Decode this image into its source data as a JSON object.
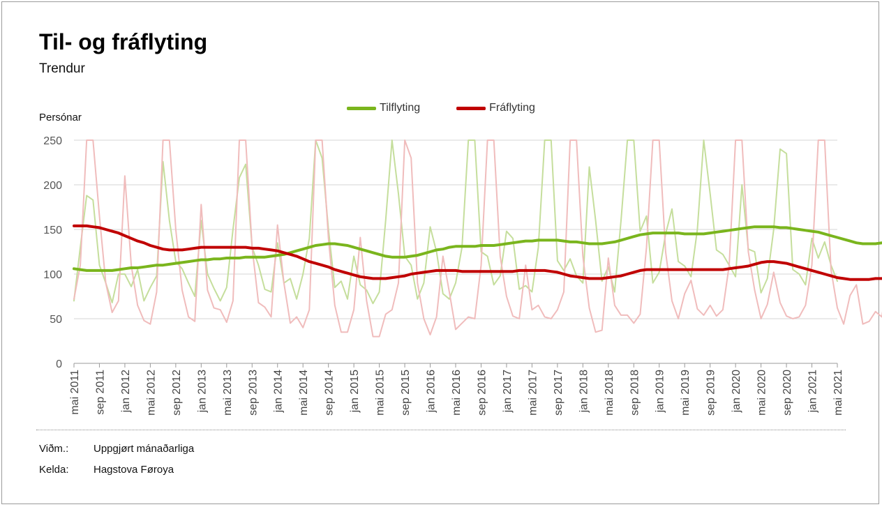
{
  "title": "Til- og fráflyting",
  "subtitle": "Trendur",
  "footer": {
    "unit_key": "Viðm.:",
    "unit_value": "Uppgjørt mánaðarliga",
    "source_key": "Kelda:",
    "source_value": "Hagstova Føroya"
  },
  "chart_data": {
    "type": "line",
    "title": "Til- og fráflyting",
    "subtitle": "Trendur",
    "ylabel": "Persónar",
    "xlabel": "",
    "ylim": [
      0,
      250
    ],
    "yticks": [
      0,
      50,
      100,
      150,
      200,
      250
    ],
    "grid": true,
    "legend_position": "top-center",
    "x_start": "2011-05",
    "x_end": "2021-05",
    "tick_labels": [
      "mai 2011",
      "sep 2011",
      "jan 2012",
      "mai 2012",
      "sep 2012",
      "jan 2013",
      "mai 2013",
      "sep 2013",
      "jan 2014",
      "mai 2014",
      "sep 2014",
      "jan 2015",
      "mai 2015",
      "sep 2015",
      "jan 2016",
      "mai 2016",
      "sep 2016",
      "jan 2017",
      "mai 2017",
      "sep 2017",
      "jan 2018",
      "mai 2018",
      "sep 2018",
      "jan 2019",
      "mai 2019",
      "sep 2019",
      "jan 2020",
      "mai 2020",
      "sep 2020",
      "jan 2021",
      "mai 2021"
    ],
    "series": [
      {
        "name": "Tilflyting",
        "kind": "trend",
        "color": "#7ab51d",
        "values": [
          106,
          105,
          104,
          104,
          104,
          104,
          104,
          105,
          106,
          107,
          107,
          108,
          109,
          110,
          110,
          111,
          112,
          113,
          114,
          115,
          116,
          116,
          117,
          117,
          118,
          118,
          118,
          119,
          119,
          119,
          119,
          120,
          121,
          122,
          124,
          126,
          128,
          130,
          132,
          133,
          134,
          134,
          133,
          132,
          130,
          128,
          126,
          124,
          122,
          120,
          119,
          119,
          119,
          120,
          121,
          123,
          125,
          127,
          128,
          130,
          131,
          131,
          131,
          131,
          132,
          132,
          132,
          133,
          134,
          135,
          136,
          137,
          137,
          138,
          138,
          138,
          138,
          137,
          136,
          136,
          135,
          134,
          134,
          134,
          135,
          136,
          138,
          140,
          142,
          144,
          145,
          146,
          146,
          146,
          146,
          146,
          145,
          145,
          145,
          145,
          146,
          147,
          148,
          149,
          150,
          151,
          152,
          153,
          153,
          153,
          153,
          152,
          152,
          151,
          150,
          149,
          148,
          147,
          145,
          143,
          141,
          139,
          137,
          135,
          134,
          134,
          134,
          135,
          135,
          136,
          138,
          140,
          142
        ]
      },
      {
        "name": "Fráflyting",
        "kind": "trend",
        "color": "#c00000",
        "values": [
          154,
          154,
          154,
          153,
          152,
          150,
          148,
          146,
          143,
          140,
          137,
          135,
          132,
          130,
          128,
          127,
          127,
          127,
          128,
          129,
          130,
          130,
          130,
          130,
          130,
          130,
          130,
          130,
          129,
          129,
          128,
          127,
          126,
          124,
          122,
          120,
          117,
          114,
          112,
          110,
          108,
          105,
          103,
          101,
          99,
          97,
          96,
          95,
          95,
          95,
          96,
          97,
          98,
          100,
          101,
          102,
          103,
          104,
          104,
          104,
          104,
          103,
          103,
          103,
          103,
          103,
          103,
          103,
          103,
          103,
          104,
          104,
          104,
          104,
          104,
          103,
          102,
          100,
          98,
          97,
          96,
          95,
          95,
          95,
          96,
          97,
          98,
          100,
          102,
          104,
          105,
          105,
          105,
          105,
          105,
          105,
          105,
          105,
          105,
          105,
          105,
          105,
          105,
          106,
          107,
          108,
          109,
          111,
          113,
          114,
          114,
          113,
          112,
          110,
          108,
          106,
          104,
          102,
          100,
          98,
          96,
          95,
          94,
          94,
          94,
          94,
          95,
          95,
          96,
          96,
          97,
          98,
          98
        ]
      },
      {
        "name": "",
        "kind": "raw-monthly",
        "color": "#c5de9c",
        "values": [
          70,
          130,
          188,
          183,
          110,
          90,
          68,
          100,
          100,
          86,
          105,
          70,
          85,
          98,
          226,
          160,
          114,
          106,
          90,
          75,
          160,
          100,
          84,
          70,
          85,
          150,
          208,
          223,
          130,
          110,
          83,
          80,
          135,
          90,
          95,
          72,
          100,
          140,
          260,
          230,
          150,
          85,
          92,
          72,
          120,
          88,
          82,
          67,
          80,
          160,
          280,
          190,
          120,
          110,
          72,
          90,
          153,
          125,
          78,
          72,
          90,
          130,
          270,
          265,
          125,
          120,
          88,
          98,
          148,
          140,
          83,
          87,
          80,
          130,
          265,
          260,
          115,
          104,
          117,
          98,
          90,
          220,
          160,
          92,
          108,
          80,
          160,
          265,
          250,
          148,
          165,
          90,
          102,
          145,
          173,
          114,
          109,
          97,
          150,
          270,
          190,
          127,
          122,
          110,
          97,
          200,
          128,
          125,
          79,
          95,
          150,
          240,
          235,
          105,
          100,
          88,
          140,
          118,
          136,
          110,
          92
        ]
      },
      {
        "name": "",
        "kind": "raw-monthly",
        "color": "#f0bcbc",
        "values": [
          72,
          110,
          270,
          280,
          165,
          90,
          57,
          70,
          210,
          110,
          65,
          48,
          44,
          80,
          290,
          280,
          150,
          82,
          52,
          47,
          178,
          82,
          62,
          60,
          46,
          70,
          290,
          280,
          130,
          68,
          63,
          52,
          155,
          90,
          45,
          52,
          40,
          60,
          270,
          255,
          140,
          65,
          35,
          35,
          60,
          141,
          70,
          30,
          30,
          55,
          60,
          90,
          260,
          230,
          90,
          50,
          32,
          52,
          120,
          80,
          38,
          45,
          52,
          50,
          110,
          290,
          270,
          120,
          75,
          53,
          50,
          110,
          60,
          65,
          52,
          50,
          60,
          80,
          290,
          280,
          120,
          62,
          35,
          37,
          118,
          65,
          54,
          54,
          45,
          55,
          130,
          290,
          270,
          125,
          70,
          50,
          78,
          93,
          61,
          54,
          65,
          53,
          60,
          110,
          290,
          275,
          125,
          82,
          50,
          66,
          102,
          68,
          53,
          50,
          52,
          65,
          110,
          285,
          280,
          105,
          62,
          44,
          76,
          88,
          44,
          47,
          58,
          52,
          100
        ]
      }
    ]
  }
}
